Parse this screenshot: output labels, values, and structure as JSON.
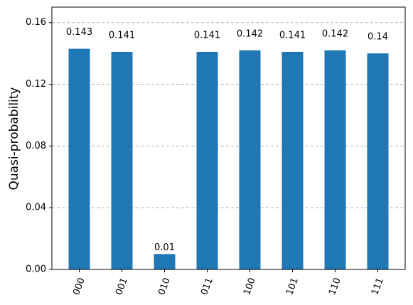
{
  "chart_data": {
    "type": "bar",
    "y_label": "Quasi-probability",
    "categories": [
      "000",
      "001",
      "010",
      "011",
      "100",
      "101",
      "110",
      "111"
    ],
    "values": [
      0.143,
      0.141,
      0.01,
      0.141,
      0.142,
      0.141,
      0.142,
      0.14
    ],
    "color": "#1f77b4",
    "ylim": [
      0,
      0.17
    ],
    "yticks": [
      {
        "value": 0,
        "label": "0.00"
      },
      0.04,
      0.08,
      0.12,
      0.16
    ],
    "grid": true
  }
}
